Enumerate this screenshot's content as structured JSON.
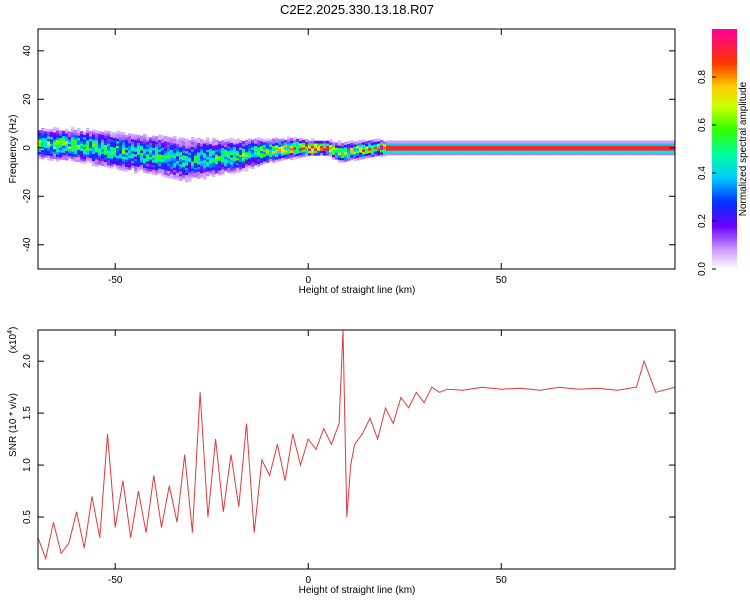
{
  "title": "C2E2.2025.330.13.18.R07",
  "colors": {
    "line": "#e03a36",
    "axis": "#000000"
  },
  "chart_data": [
    {
      "type": "heatmap",
      "id": "spectrogram",
      "xlabel": "Height of straight line (km)",
      "ylabel": "Frequency (Hz)",
      "xlim": [
        -70,
        95
      ],
      "ylim": [
        -50,
        49
      ],
      "x_ticks": [
        -50,
        0,
        50
      ],
      "y_ticks": [
        -40,
        -20,
        0,
        20,
        40
      ],
      "x_tick_labels": [
        "-50",
        "0",
        "50"
      ],
      "y_tick_labels": [
        "-40",
        "-20",
        "0",
        "20",
        "40"
      ],
      "colorbar": {
        "label": "Normalized spectral amplitude",
        "range": [
          0,
          1
        ],
        "ticks": [
          0,
          0.2,
          0.4,
          0.6,
          0.8
        ],
        "tick_labels": [
          "0.0",
          "0.2",
          "0.4",
          "0.6",
          "0.8"
        ]
      },
      "ridge": [
        {
          "x": -70,
          "center": 2,
          "spread": 5.0,
          "amp": 0.55
        },
        {
          "x": -60,
          "center": 1,
          "spread": 5.5,
          "amp": 0.5
        },
        {
          "x": -50,
          "center": -1,
          "spread": 6.5,
          "amp": 0.45
        },
        {
          "x": -40,
          "center": -3,
          "spread": 7.0,
          "amp": 0.42
        },
        {
          "x": -32,
          "center": -5,
          "spread": 7.5,
          "amp": 0.4
        },
        {
          "x": -25,
          "center": -4,
          "spread": 6.5,
          "amp": 0.42
        },
        {
          "x": -18,
          "center": -3,
          "spread": 5.5,
          "amp": 0.48
        },
        {
          "x": -10,
          "center": -1,
          "spread": 4.0,
          "amp": 0.58
        },
        {
          "x": -3,
          "center": 0,
          "spread": 3.0,
          "amp": 0.75
        },
        {
          "x": 0,
          "center": 0,
          "spread": 2.5,
          "amp": 0.85
        },
        {
          "x": 5,
          "center": 0,
          "spread": 2.5,
          "amp": 0.7
        },
        {
          "x": 8,
          "center": -2,
          "spread": 3.5,
          "amp": 0.6
        },
        {
          "x": 12,
          "center": -1,
          "spread": 3.0,
          "amp": 0.65
        },
        {
          "x": 18,
          "center": 0,
          "spread": 2.5,
          "amp": 0.8
        },
        {
          "x": 20,
          "center": 0,
          "spread": 2.0,
          "amp": 1.0
        },
        {
          "x": 95,
          "center": 0,
          "spread": 2.0,
          "amp": 1.0
        }
      ]
    },
    {
      "type": "line",
      "id": "snr",
      "xlabel": "Height of straight line (km)",
      "ylabel": "SNR (10 * v/v)",
      "y_scale_label": "(x10",
      "y_scale_exp": "4",
      "y_scale_close": ")",
      "xlim": [
        -70,
        95
      ],
      "ylim": [
        0,
        2.3
      ],
      "x_ticks": [
        -50,
        0,
        50
      ],
      "y_ticks": [
        0.5,
        1.0,
        1.5,
        2.0
      ],
      "x_tick_labels": [
        "-50",
        "0",
        "50"
      ],
      "y_tick_labels": [
        "0.5",
        "1.0",
        "1.5",
        "2.0"
      ],
      "series": [
        {
          "name": "SNR",
          "x": [
            -70,
            -68,
            -66,
            -64,
            -62,
            -60,
            -58,
            -56,
            -54,
            -52,
            -50,
            -48,
            -46,
            -44,
            -42,
            -40,
            -38,
            -36,
            -34,
            -32,
            -30,
            -28,
            -26,
            -24,
            -22,
            -20,
            -18,
            -16,
            -14,
            -12,
            -10,
            -8,
            -6,
            -4,
            -2,
            0,
            2,
            4,
            6,
            8,
            9,
            10,
            11,
            12,
            14,
            16,
            18,
            20,
            22,
            24,
            26,
            28,
            30,
            32,
            34,
            36,
            40,
            45,
            50,
            55,
            60,
            65,
            70,
            75,
            80,
            85,
            87,
            90,
            95
          ],
          "y": [
            0.3,
            0.1,
            0.45,
            0.15,
            0.25,
            0.55,
            0.2,
            0.7,
            0.3,
            1.3,
            0.4,
            0.85,
            0.3,
            0.75,
            0.35,
            0.9,
            0.4,
            0.8,
            0.45,
            1.1,
            0.35,
            1.7,
            0.5,
            1.25,
            0.55,
            1.1,
            0.6,
            1.4,
            0.35,
            1.05,
            0.9,
            1.2,
            0.85,
            1.3,
            1.0,
            1.25,
            1.15,
            1.35,
            1.2,
            1.4,
            2.3,
            0.5,
            1.0,
            1.2,
            1.3,
            1.45,
            1.25,
            1.55,
            1.4,
            1.65,
            1.55,
            1.7,
            1.6,
            1.75,
            1.7,
            1.73,
            1.72,
            1.75,
            1.73,
            1.74,
            1.72,
            1.75,
            1.73,
            1.74,
            1.72,
            1.75,
            2.0,
            1.7,
            1.75
          ]
        }
      ]
    }
  ]
}
